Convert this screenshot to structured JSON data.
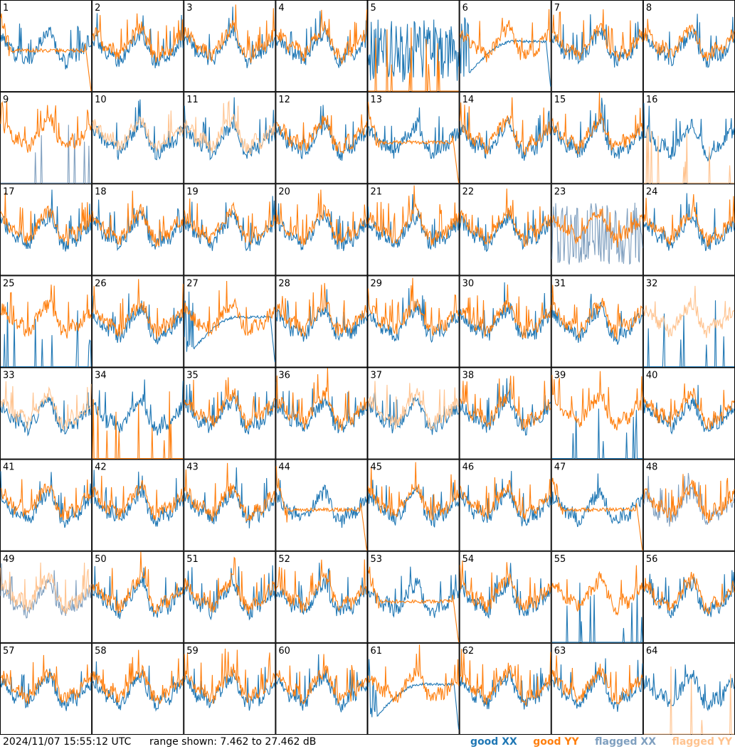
{
  "footer": {
    "timestamp": "2024/11/07 15:55:12 UTC",
    "range_text": "range shown: 7.462 to 27.462 dB"
  },
  "legend": [
    {
      "key": "good_xx",
      "label": "good XX",
      "color": "#1f77b4"
    },
    {
      "key": "good_yy",
      "label": "good YY",
      "color": "#ff7f0e"
    },
    {
      "key": "flagged_xx",
      "label": "flagged XX",
      "color": "#7f9fbf"
    },
    {
      "key": "flagged_yy",
      "label": "flagged YY",
      "color": "#ffc38f"
    }
  ],
  "chart_data": {
    "type": "line",
    "layout": "small-multiples 8x8",
    "range_db": [
      7.462,
      27.462
    ],
    "xlabel": "",
    "ylabel": "",
    "panels": [
      {
        "id": 1,
        "xx": "normal",
        "yy": "flat",
        "yy_status": "good"
      },
      {
        "id": 2,
        "xx": "normal",
        "yy": "normal"
      },
      {
        "id": 3,
        "xx": "normal",
        "yy": "normal"
      },
      {
        "id": 4,
        "xx": "normal",
        "yy": "normal"
      },
      {
        "id": 5,
        "xx": "noisy",
        "yy": "spikes"
      },
      {
        "id": 6,
        "xx": "decay",
        "yy": "normal"
      },
      {
        "id": 7,
        "xx": "normal",
        "yy": "normal"
      },
      {
        "id": 8,
        "xx": "normal",
        "yy": "normal"
      },
      {
        "id": 9,
        "xx": "spikes",
        "yy": "normal",
        "xx_status": "flagged"
      },
      {
        "id": 10,
        "xx": "normal",
        "yy": "normal",
        "yy_status": "flagged"
      },
      {
        "id": 11,
        "xx": "normal",
        "yy": "normal",
        "yy_status": "flagged"
      },
      {
        "id": 12,
        "xx": "normal",
        "yy": "normal"
      },
      {
        "id": 13,
        "xx": "normal",
        "yy": "flat"
      },
      {
        "id": 14,
        "xx": "normal",
        "yy": "normal"
      },
      {
        "id": 15,
        "xx": "normal",
        "yy": "normal"
      },
      {
        "id": 16,
        "xx": "normal",
        "yy": "spikes",
        "yy_status": "flagged"
      },
      {
        "id": 17,
        "xx": "normal",
        "yy": "normal"
      },
      {
        "id": 18,
        "xx": "normal",
        "yy": "normal"
      },
      {
        "id": 19,
        "xx": "normal",
        "yy": "normal"
      },
      {
        "id": 20,
        "xx": "normal",
        "yy": "normal"
      },
      {
        "id": 21,
        "xx": "normal",
        "yy": "normal"
      },
      {
        "id": 22,
        "xx": "normal",
        "yy": "normal"
      },
      {
        "id": 23,
        "xx": "noisy",
        "yy": "normal",
        "xx_status": "flagged"
      },
      {
        "id": 24,
        "xx": "normal",
        "yy": "normal"
      },
      {
        "id": 25,
        "xx": "spikes",
        "yy": "normal"
      },
      {
        "id": 26,
        "xx": "normal",
        "yy": "normal"
      },
      {
        "id": 27,
        "xx": "decay",
        "yy": "normal"
      },
      {
        "id": 28,
        "xx": "normal",
        "yy": "normal"
      },
      {
        "id": 29,
        "xx": "normal",
        "yy": "normal"
      },
      {
        "id": 30,
        "xx": "normal",
        "yy": "normal"
      },
      {
        "id": 31,
        "xx": "normal",
        "yy": "normal"
      },
      {
        "id": 32,
        "xx": "spikes",
        "yy": "normal",
        "yy_status": "flagged"
      },
      {
        "id": 33,
        "xx": "normal",
        "yy": "normal",
        "yy_status": "flagged"
      },
      {
        "id": 34,
        "xx": "normal",
        "yy": "spikes"
      },
      {
        "id": 35,
        "xx": "normal",
        "yy": "normal"
      },
      {
        "id": 36,
        "xx": "normal",
        "yy": "normal"
      },
      {
        "id": 37,
        "xx": "normal",
        "yy": "normal",
        "yy_status": "flagged"
      },
      {
        "id": 38,
        "xx": "normal",
        "yy": "normal"
      },
      {
        "id": 39,
        "xx": "spikes",
        "yy": "normal"
      },
      {
        "id": 40,
        "xx": "normal",
        "yy": "normal"
      },
      {
        "id": 41,
        "xx": "normal",
        "yy": "normal"
      },
      {
        "id": 42,
        "xx": "normal",
        "yy": "normal"
      },
      {
        "id": 43,
        "xx": "normal",
        "yy": "normal"
      },
      {
        "id": 44,
        "xx": "normal",
        "yy": "flat"
      },
      {
        "id": 45,
        "xx": "normal",
        "yy": "normal"
      },
      {
        "id": 46,
        "xx": "normal",
        "yy": "normal"
      },
      {
        "id": 47,
        "xx": "normal",
        "yy": "flat"
      },
      {
        "id": 48,
        "xx": "normal",
        "yy": "normal",
        "xx_status": "flagged"
      },
      {
        "id": 49,
        "xx": "normal",
        "yy": "normal",
        "xx_status": "flagged",
        "yy_status": "flagged"
      },
      {
        "id": 50,
        "xx": "normal",
        "yy": "normal"
      },
      {
        "id": 51,
        "xx": "normal",
        "yy": "normal"
      },
      {
        "id": 52,
        "xx": "normal",
        "yy": "normal"
      },
      {
        "id": 53,
        "xx": "normal",
        "yy": "flat"
      },
      {
        "id": 54,
        "xx": "normal",
        "yy": "normal"
      },
      {
        "id": 55,
        "xx": "spikes",
        "yy": "normal"
      },
      {
        "id": 56,
        "xx": "normal",
        "yy": "normal"
      },
      {
        "id": 57,
        "xx": "normal",
        "yy": "normal"
      },
      {
        "id": 58,
        "xx": "normal",
        "yy": "normal"
      },
      {
        "id": 59,
        "xx": "normal",
        "yy": "normal"
      },
      {
        "id": 60,
        "xx": "normal",
        "yy": "normal"
      },
      {
        "id": 61,
        "xx": "decay",
        "yy": "normal"
      },
      {
        "id": 62,
        "xx": "normal",
        "yy": "normal"
      },
      {
        "id": 63,
        "xx": "normal",
        "yy": "normal"
      },
      {
        "id": 64,
        "xx": "normal",
        "yy": "spikes",
        "yy_status": "flagged"
      }
    ]
  }
}
